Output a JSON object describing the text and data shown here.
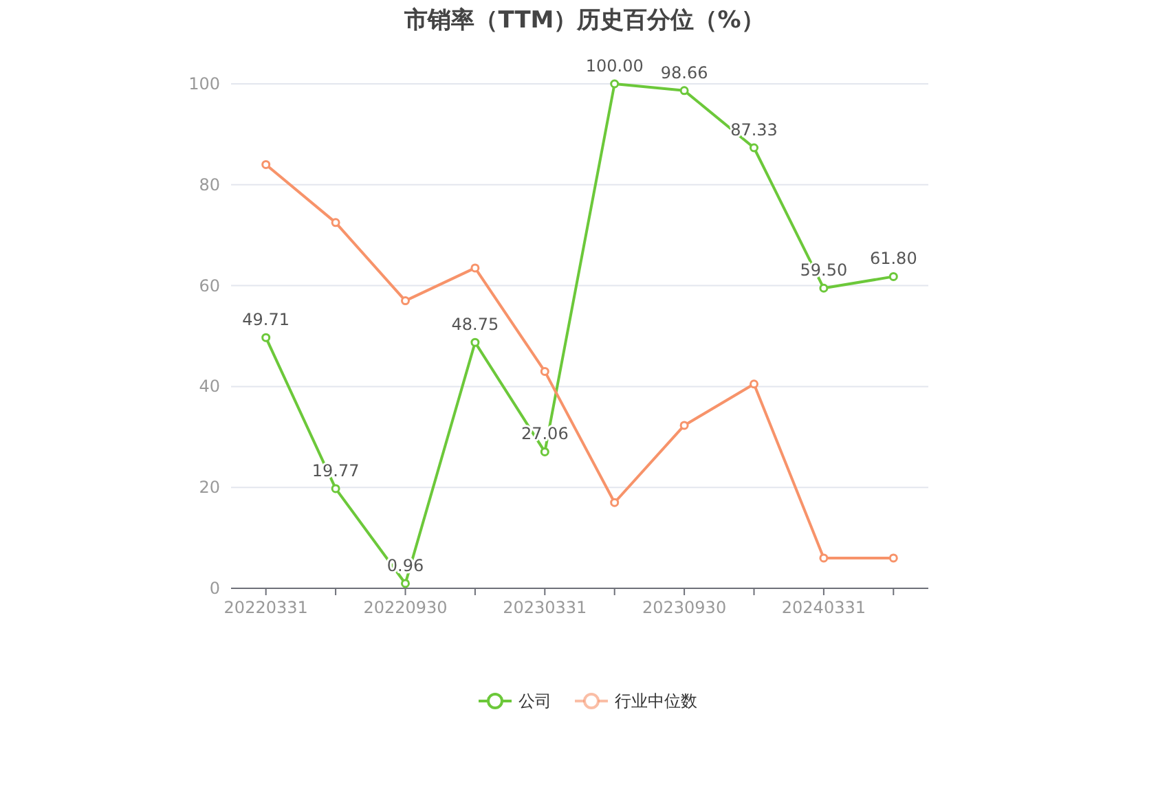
{
  "chart_data": {
    "type": "line",
    "title": "市销率（TTM）历史百分位（%）",
    "categories": [
      "20220331",
      null,
      "20220930",
      null,
      "20230331",
      null,
      "20230930",
      null,
      "20240331",
      null
    ],
    "series": [
      {
        "name": "公司",
        "color": "#6cc83a",
        "values": [
          49.71,
          19.77,
          0.96,
          48.75,
          27.06,
          100.0,
          98.66,
          87.33,
          59.5,
          61.8
        ],
        "value_labels": [
          "49.71",
          "19.77",
          "0.96",
          "48.75",
          "27.06",
          "100.00",
          "98.66",
          "87.33",
          "59.50",
          "61.80"
        ]
      },
      {
        "name": "行业中位数",
        "color": "#f7936a",
        "values": [
          84,
          72.5,
          57,
          63.5,
          43,
          17,
          32.3,
          40.5,
          6,
          6
        ]
      }
    ],
    "ylim": [
      0,
      100
    ],
    "yticks": [
      0,
      20,
      40,
      60,
      80,
      100
    ],
    "grid": "y",
    "legend": "bottom",
    "marker": "circle",
    "line_style": "solid"
  }
}
